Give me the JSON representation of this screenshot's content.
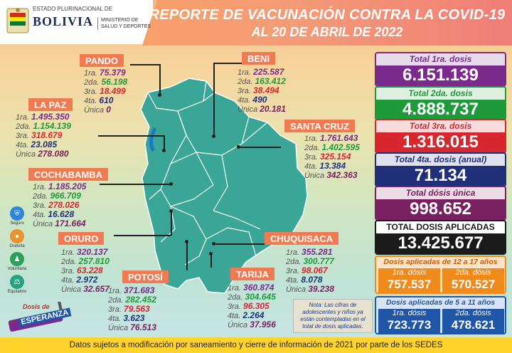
{
  "header": {
    "logo_small": "ESTADO PLURINACIONAL DE",
    "logo_big": "BOLIVIA",
    "ministry_line1": "MINISTERIO DE",
    "ministry_line2": "SALUD Y DEPORTES",
    "title_line1": "REPORTE DE VACUNACIÓN CONTRA LA COVID-19",
    "title_line2": "AL 20 DE ABRIL DE 2022"
  },
  "dose_labels": {
    "d1": "1ra.",
    "d2": "2da.",
    "d3": "3ra.",
    "d4": "4ta.",
    "du": "Única"
  },
  "departments": {
    "pando": {
      "name": "PANDO",
      "d1": "75.379",
      "d2": "56.198",
      "d3": "18.499",
      "d4": "610",
      "du": "0"
    },
    "beni": {
      "name": "BENI",
      "d1": "225.587",
      "d2": "163.412",
      "d3": "38.494",
      "d4": "490",
      "du": "20.181"
    },
    "lapaz": {
      "name": "LA PAZ",
      "d1": "1.495.350",
      "d2": "1.154.139",
      "d3": "318.679",
      "d4": "23.085",
      "du": "278.080"
    },
    "santacruz": {
      "name": "SANTA CRUZ",
      "d1": "1.761.643",
      "d2": "1.402.595",
      "d3": "325.154",
      "d4": "13.384",
      "du": "342.363"
    },
    "cochabamba": {
      "name": "COCHABAMBA",
      "d1": "1.185.205",
      "d2": "966.709",
      "d3": "278.026",
      "d4": "16.628",
      "du": "171.664"
    },
    "oruro": {
      "name": "ORURO",
      "d1": "320.137",
      "d2": "257.810",
      "d3": "63.228",
      "d4": "2.972",
      "du": "32.657"
    },
    "chuquisaca": {
      "name": "CHUQUISACA",
      "d1": "355.281",
      "d2": "300.777",
      "d3": "98.067",
      "d4": "8.078",
      "du": "39.238"
    },
    "potosi": {
      "name": "POTOSÍ",
      "d1": "371.683",
      "d2": "282.452",
      "d3": "79.563",
      "d4": "3.623",
      "du": "76.513"
    },
    "tarija": {
      "name": "TARIJA",
      "d1": "360.874",
      "d2": "304.645",
      "d3": "96.305",
      "d4": "2.264",
      "du": "37.956"
    }
  },
  "totals": {
    "t1": {
      "label": "Total 1ra. dosis",
      "value": "6.151.139",
      "color": "#7a2a8a"
    },
    "t2": {
      "label": "Total 2da. dosis",
      "value": "4.888.737",
      "color": "#1f9a3a"
    },
    "t3": {
      "label": "Total 3ra. dosis",
      "value": "1.316.015",
      "color": "#d8262e"
    },
    "t4": {
      "label": "Total 4ta. dosis (anual)",
      "value": "71.134",
      "color": "#1f2f7a"
    },
    "tu": {
      "label": "Total dósis única",
      "value": "998.652",
      "color": "#7a2060"
    },
    "ta": {
      "label": "TOTAL DOSIS APLICADAS",
      "value": "13.425.677",
      "color": "#1a1a1a"
    }
  },
  "teen": {
    "title": "Dosis aplicadas de 12 a 17 años",
    "d1_label": "1ra. dósis",
    "d1": "757.537",
    "d2_label": "2da. dósis",
    "d2": "570.527",
    "color": "#f08a1a"
  },
  "kids": {
    "title": "Dosis aplicadas de 5 a 11 años",
    "d1_label": "1ra. dósis",
    "d1": "723.773",
    "d2_label": "2da. dósis",
    "d2": "478.621",
    "color": "#1f56a8"
  },
  "legend": {
    "seguro": "Seguro",
    "gratuita": "Gratuita",
    "voluntaria": "Voluntaria",
    "equitativo": "Equitativo"
  },
  "campaign": {
    "line1": "Dosis de",
    "line2": "ESPERANZA"
  },
  "note": "Nota: Las cifras de adolescentes y niños ya están contempladas en el total de dosis aplicadas.",
  "footer": "Datos sujetos a modificación por saneamiento y cierre de información de 2021 por parte de los SEDES"
}
